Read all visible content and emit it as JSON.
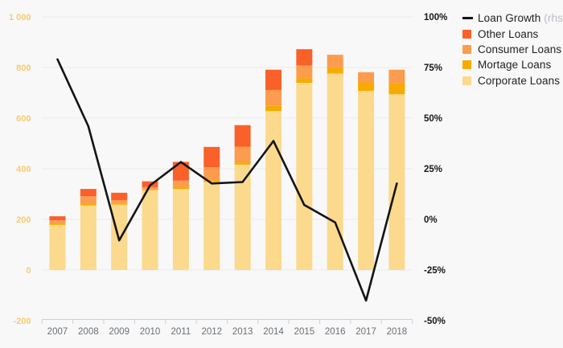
{
  "chart_data": {
    "type": "bar",
    "subtype": "stacked-bars-with-line-overlay",
    "title": "",
    "categories": [
      "2007",
      "2008",
      "2009",
      "2010",
      "2011",
      "2012",
      "2013",
      "2014",
      "2015",
      "2016",
      "2017",
      "2018"
    ],
    "series": [
      {
        "name": "Corporate Loans",
        "axis": "left",
        "color": "#fbd98d",
        "values": [
          178,
          255,
          258,
          315,
          320,
          348,
          416,
          628,
          739,
          776,
          707,
          694
        ]
      },
      {
        "name": "Mortage Loans",
        "axis": "left",
        "color": "#f7ab00",
        "values": [
          6,
          8,
          6,
          3,
          8,
          10,
          9,
          20,
          18,
          24,
          34,
          45
        ]
      },
      {
        "name": "Consumer Loans",
        "axis": "left",
        "color": "#fb9c4f",
        "values": [
          12,
          28,
          12,
          9,
          25,
          48,
          62,
          63,
          51,
          50,
          40,
          52
        ]
      },
      {
        "name": "Other Loans",
        "axis": "left",
        "color": "#f9602a",
        "values": [
          16,
          29,
          29,
          23,
          74,
          80,
          85,
          80,
          64,
          0,
          0,
          0
        ]
      }
    ],
    "bar_totals": [
      212,
      320,
      305,
      350,
      427,
      486,
      572,
      791,
      872,
      850,
      781,
      791
    ],
    "line_series": {
      "name": "Loan Growth",
      "rhs_note": "(rhs)",
      "axis": "right",
      "color": "#141414",
      "values_pct": [
        79,
        46,
        -10.4,
        16.8,
        28.3,
        17.7,
        18.4,
        38.7,
        7.1,
        -1.5,
        -40.1,
        17.7
      ]
    },
    "left_axis": {
      "tick_labels": [
        "1 000",
        "800",
        "600",
        "400",
        "200",
        "0",
        "-200"
      ],
      "tick_values": [
        1000,
        800,
        600,
        400,
        200,
        0,
        -200
      ],
      "min": -200,
      "max": 1000
    },
    "right_axis": {
      "tick_labels": [
        "100%",
        "75%",
        "50%",
        "25%",
        "0%",
        "-25%",
        "-50%"
      ],
      "tick_values": [
        100,
        75,
        50,
        25,
        0,
        -25,
        -50
      ],
      "min": -50,
      "max": 100
    },
    "grid": true,
    "legend_position": "top-right",
    "colors": {
      "background": "#f8f8f8",
      "gridline": "#ebebeb",
      "axis_line": "#c7cfe6",
      "left_tick_label": "#f7cb72",
      "right_tick_label": "#17171b",
      "x_tick_label": "#6b7076"
    }
  }
}
